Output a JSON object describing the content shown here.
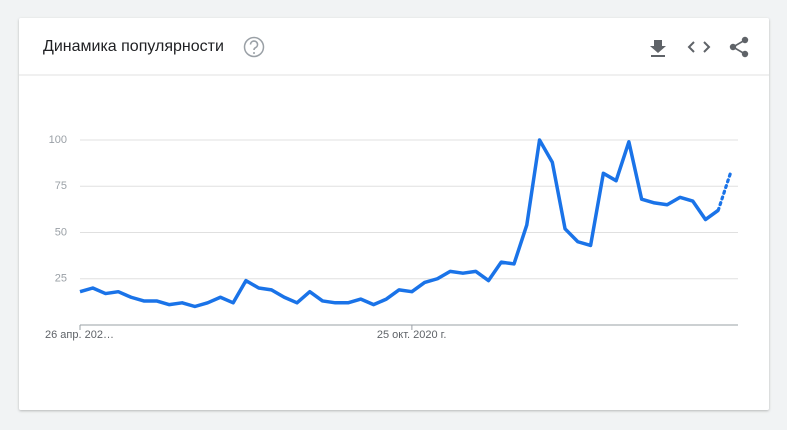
{
  "chart_data": {
    "type": "line",
    "title": "Динамика популярности",
    "categories": [
      "26 апр. 202…",
      null,
      null,
      null,
      null,
      null,
      null,
      null,
      null,
      null,
      null,
      null,
      null,
      null,
      null,
      null,
      null,
      null,
      null,
      null,
      null,
      null,
      null,
      null,
      null,
      null,
      "25 окт. 2020 г.",
      null,
      null,
      null,
      null,
      null,
      null,
      null,
      null,
      null,
      null,
      null,
      null,
      null,
      null,
      null,
      null,
      null,
      null,
      null,
      null,
      null,
      null,
      null,
      null,
      null
    ],
    "series": [
      {
        "color": "#1a73e8",
        "values": [
          18,
          20,
          17,
          18,
          15,
          13,
          13,
          11,
          12,
          10,
          12,
          15,
          12,
          24,
          20,
          19,
          15,
          12,
          18,
          13,
          12,
          12,
          14,
          11,
          14,
          19,
          18,
          23,
          25,
          29,
          28,
          29,
          24,
          34,
          33,
          54,
          100,
          88,
          52,
          45,
          43,
          82,
          78,
          99,
          68,
          66,
          65,
          69,
          67,
          57,
          62,
          83
        ]
      }
    ],
    "ylim": [
      0,
      100
    ],
    "yticks": [
      25,
      50,
      75,
      100
    ],
    "grid": true,
    "dotted_last_segment": true
  }
}
